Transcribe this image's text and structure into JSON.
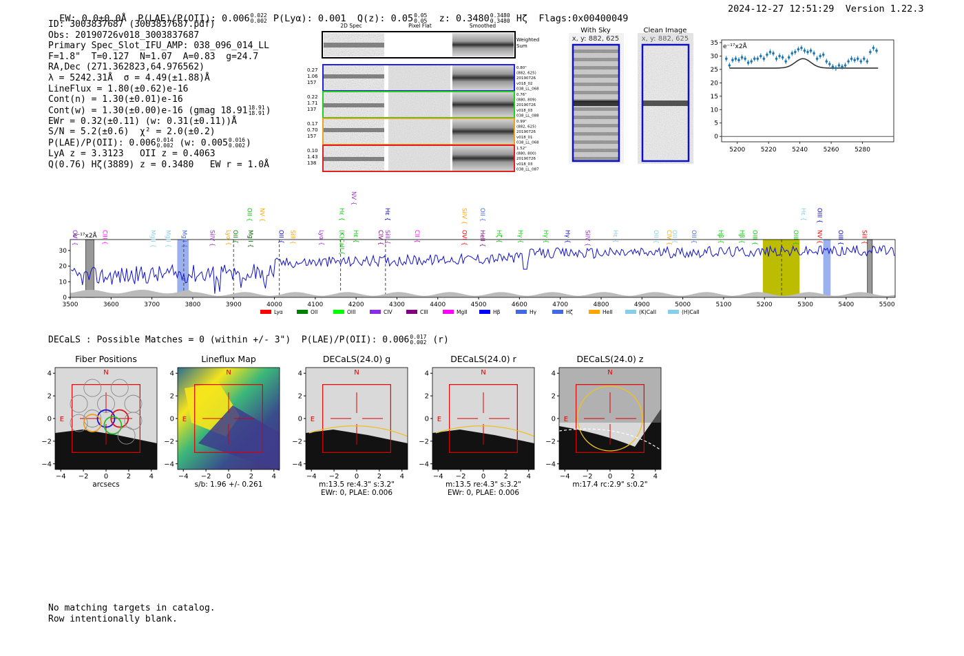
{
  "header": {
    "ew_label": "EW: 0.0±0.0Å",
    "plae_label": "P(LAE)/P(OII): 0.006",
    "plae_hi": "0.022",
    "plae_lo": "0.002",
    "plya": "P(Lyα): 0.001",
    "qz_label": "Q(z): 0.05",
    "qz_hi": "0.05",
    "qz_lo": "0.05",
    "z_label": "z: 0.3480",
    "z_hi": "0.3480",
    "z_lo": "0.3480",
    "line_name": "Hζ",
    "flags": "Flags:0x00400049",
    "timestamp": "2024-12-27 12:51:29",
    "version": "Version 1.22.3"
  },
  "info": {
    "id": "ID: 3003837687 (3003837687.pdf)",
    "obs": "Obs: 20190726v018_3003837687",
    "primary": "Primary Spec_Slot_IFU_AMP: 038_096_014_LL",
    "params": "F=1.8\"  T=0.127  N=1.07  A=0.83  g=24.7",
    "radec": "RA,Dec (271.362823,64.976562)",
    "lambda": "λ = 5242.31Å  σ = 4.49(±1.88)Å",
    "lineflux": "LineFlux = 1.80(±0.62)e-16",
    "contn": "Cont(n) = 1.30(±0.01)e-16",
    "contw": "Cont(w) = 1.30(±0.00)e-16 (gmag 18.91",
    "contw_hi": "18.91",
    "contw_lo": "18.91",
    "ewr": "EWr = 0.32(±0.11) (w: 0.31(±0.11))Å",
    "sn": "S/N = 5.2(±0.6)  χ² = 2.0(±0.2)",
    "plae2": "P(LAE)/P(OII): 0.006",
    "plae2_hi": "0.014",
    "plae2_lo": "0.002",
    "plae2_w": "(w: 0.005",
    "plae2_w_hi": "0.016",
    "plae2_w_lo": "0.002",
    "lya": "LyA z = 3.3123   OII z = 0.4063",
    "q": "Q(0.76) Hζ(3889) z = 0.3480   EW r = 1.0Å"
  },
  "cutouts": {
    "col_2d": "2D Spec",
    "col_flat": "Pixel Flat",
    "col_smooth": "Smoothed",
    "weighted": "Weighted\nSum",
    "rows": [
      {
        "left": [
          "0.27",
          "1.06",
          "157"
        ],
        "right": [
          "0.80\"",
          "(882, 625)",
          "20190726",
          "v018_02",
          "038_LL_068"
        ],
        "color": "#2020e0"
      },
      {
        "left": [
          "0.22",
          "1.71",
          "137"
        ],
        "right": [
          "0.76\"",
          "(880, 809)",
          "20190726",
          "v018_03",
          "038_LL_088"
        ],
        "color": "#20d020"
      },
      {
        "left": [
          "0.17",
          "0.70",
          "157"
        ],
        "right": [
          "0.99\"",
          "(882, 625)",
          "20190726",
          "v018_01",
          "038_LL_068"
        ],
        "color": "#f0a020"
      },
      {
        "left": [
          "0.10",
          "1.43",
          "138"
        ],
        "right": [
          "1.52\"",
          "(880, 800)",
          "20190726",
          "v018_03",
          "038_LL_087"
        ],
        "color": "#e02020"
      }
    ],
    "with_sky_title": "With Sky",
    "with_sky_xy": "x, y: 882, 625",
    "clean_title": "Clean Image",
    "clean_xy": "x, y: 882, 625"
  },
  "zoom_chart": {
    "type": "scatter",
    "unit_label": "e⁻¹⁷x2Å",
    "xlim": [
      5190,
      5300
    ],
    "ylim": [
      -2,
      36
    ],
    "xticks": [
      "5200",
      "5220",
      "5240",
      "5260",
      "5280"
    ],
    "yticks": [
      "0",
      "5",
      "10",
      "15",
      "20",
      "25",
      "30",
      "35"
    ],
    "points": [
      [
        5193,
        29
      ],
      [
        5195,
        26.5
      ],
      [
        5197,
        28.5
      ],
      [
        5199,
        29
      ],
      [
        5201,
        28.5
      ],
      [
        5203,
        29.5
      ],
      [
        5205,
        29
      ],
      [
        5207,
        27.5
      ],
      [
        5209,
        28
      ],
      [
        5211,
        29
      ],
      [
        5213,
        29
      ],
      [
        5215,
        30
      ],
      [
        5217,
        29
      ],
      [
        5219,
        30.5
      ],
      [
        5221,
        31.5
      ],
      [
        5223,
        31
      ],
      [
        5225,
        29
      ],
      [
        5227,
        30
      ],
      [
        5229,
        29.5
      ],
      [
        5231,
        28
      ],
      [
        5233,
        29.5
      ],
      [
        5235,
        31
      ],
      [
        5237,
        31.5
      ],
      [
        5239,
        32.5
      ],
      [
        5241,
        33
      ],
      [
        5243,
        32
      ],
      [
        5245,
        31.5
      ],
      [
        5247,
        32
      ],
      [
        5249,
        31
      ],
      [
        5251,
        29
      ],
      [
        5253,
        30
      ],
      [
        5255,
        30.5
      ],
      [
        5257,
        28
      ],
      [
        5259,
        27
      ],
      [
        5261,
        26
      ],
      [
        5263,
        25.5
      ],
      [
        5265,
        26.5
      ],
      [
        5267,
        26
      ],
      [
        5269,
        26.5
      ],
      [
        5271,
        28
      ],
      [
        5273,
        29
      ],
      [
        5275,
        28.5
      ],
      [
        5277,
        29
      ],
      [
        5279,
        28
      ],
      [
        5281,
        29
      ],
      [
        5283,
        28
      ],
      [
        5285,
        31.5
      ],
      [
        5287,
        33
      ],
      [
        5289,
        32
      ]
    ],
    "fit_base": 25.5,
    "fit_peak": 29.0,
    "fit_center": 5242,
    "fit_sigma": 5
  },
  "spectrum": {
    "unit_label": "e⁻¹⁷x2Å",
    "xlim": [
      3500,
      5520
    ],
    "ylim": [
      0,
      37
    ],
    "xticks": [
      "3500",
      "3600",
      "3700",
      "3800",
      "3900",
      "4000",
      "4100",
      "4200",
      "4300",
      "4400",
      "4500",
      "4600",
      "4700",
      "4800",
      "4900",
      "5000",
      "5100",
      "5200",
      "5300",
      "5400",
      "5500"
    ],
    "yticks": [
      "0",
      "10",
      "20",
      "30"
    ],
    "dashed_lines": [
      3778,
      3900,
      4012,
      4162,
      4272,
      5242
    ],
    "blue_bands": [
      [
        3762,
        3790
      ],
      [
        5344,
        5362
      ]
    ],
    "gray_bands": [
      [
        3538,
        3558
      ],
      [
        5452,
        5464
      ]
    ],
    "yellow_band": [
      5196,
      5286
    ],
    "line_labels": [
      {
        "t": "OVI",
        "x": 3507,
        "r": 1,
        "c": "#8a2be2"
      },
      {
        "t": "CIII",
        "x": 3580,
        "r": 1,
        "c": "#ff00ff"
      },
      {
        "t": "MgII",
        "x": 3698,
        "r": 1,
        "c": "#87ceeb"
      },
      {
        "t": "MgII",
        "x": 3735,
        "r": 1,
        "c": "#87ceeb"
      },
      {
        "t": "MgII",
        "x": 3775,
        "r": 1,
        "c": "#4169e1"
      },
      {
        "t": "SiIV",
        "x": 3843,
        "r": 1,
        "c": "#9932cc"
      },
      {
        "t": "Lyα",
        "x": 3883,
        "r": 1,
        "c": "#ffa500"
      },
      {
        "t": "OII",
        "x": 3900,
        "r": 1,
        "c": "#008000"
      },
      {
        "t": "OII",
        "x": 3934,
        "r": 2,
        "c": "#00c000"
      },
      {
        "t": "MgII",
        "x": 3937,
        "r": 1,
        "c": "#006400"
      },
      {
        "t": "NV",
        "x": 3965,
        "r": 2,
        "c": "#ffa500"
      },
      {
        "t": "OII",
        "x": 4012,
        "r": 1,
        "c": "#0000cd"
      },
      {
        "t": "SiII",
        "x": 4040,
        "r": 1,
        "c": "#ffa500"
      },
      {
        "t": "Lyα",
        "x": 4110,
        "r": 1,
        "c": "#9932cc"
      },
      {
        "t": "Hε",
        "x": 4160,
        "r": 2,
        "c": "#00d000"
      },
      {
        "t": "(K)CaII",
        "x": 4160,
        "r": 1,
        "c": "#00c000"
      },
      {
        "t": "NV",
        "x": 4190,
        "r": 3,
        "c": "#9932cc"
      },
      {
        "t": "Hε",
        "x": 4195,
        "r": 1,
        "c": "#00d000"
      },
      {
        "t": "CIV",
        "x": 4255,
        "r": 1,
        "c": "#800080"
      },
      {
        "t": "Hε",
        "x": 4272,
        "r": 2,
        "c": "#0000cd"
      },
      {
        "t": "SiII",
        "x": 4272,
        "r": 1,
        "c": "#9932cc"
      },
      {
        "t": "CII",
        "x": 4345,
        "r": 1,
        "c": "#ff00ff"
      },
      {
        "t": "SiIV",
        "x": 4460,
        "r": 2,
        "c": "#ffa500"
      },
      {
        "t": "OVI",
        "x": 4460,
        "r": 1,
        "c": "#ff0000"
      },
      {
        "t": "OII",
        "x": 4505,
        "r": 2,
        "c": "#4169e1"
      },
      {
        "t": "HeII",
        "x": 4505,
        "r": 1,
        "c": "#800080"
      },
      {
        "t": "Hζ",
        "x": 4545,
        "r": 1,
        "c": "#00d000"
      },
      {
        "t": "Hγ",
        "x": 4598,
        "r": 1,
        "c": "#00d000"
      },
      {
        "t": "Hγ",
        "x": 4660,
        "r": 1,
        "c": "#00d000"
      },
      {
        "t": "Hγ",
        "x": 4713,
        "r": 1,
        "c": "#0000cd"
      },
      {
        "t": "SiIV",
        "x": 4762,
        "r": 1,
        "c": "#9932cc"
      },
      {
        "t": "Hε",
        "x": 4830,
        "r": 1,
        "c": "#87ceeb"
      },
      {
        "t": "OII",
        "x": 4930,
        "r": 1,
        "c": "#87ceeb"
      },
      {
        "t": "CIV",
        "x": 4962,
        "r": 1,
        "c": "#ffa500"
      },
      {
        "t": "OII",
        "x": 4975,
        "r": 1,
        "c": "#87ceeb"
      },
      {
        "t": "OII",
        "x": 5023,
        "r": 1,
        "c": "#4169e1"
      },
      {
        "t": "Hβ",
        "x": 5088,
        "r": 1,
        "c": "#00d000"
      },
      {
        "t": "Hβ",
        "x": 5140,
        "r": 1,
        "c": "#00d000"
      },
      {
        "t": "OIII",
        "x": 5172,
        "r": 1,
        "c": "#00d000"
      },
      {
        "t": "OIII",
        "x": 5272,
        "r": 1,
        "c": "#00d000"
      },
      {
        "t": "Hε",
        "x": 5291,
        "r": 2,
        "c": "#87ceeb"
      },
      {
        "t": "NV",
        "x": 5330,
        "r": 1,
        "c": "#ff0000"
      },
      {
        "t": "OIII",
        "x": 5330,
        "r": 2,
        "c": "#0000cd"
      },
      {
        "t": "OIII",
        "x": 5382,
        "r": 1,
        "c": "#0000cd"
      },
      {
        "t": "SiII",
        "x": 5440,
        "r": 1,
        "c": "#ff0000"
      }
    ],
    "legend": [
      {
        "t": "Lyα",
        "c": "#ff0000"
      },
      {
        "t": "OII",
        "c": "#008000"
      },
      {
        "t": "OIII",
        "c": "#00ff00"
      },
      {
        "t": "CIV",
        "c": "#8a2be2"
      },
      {
        "t": "CIII",
        "c": "#800080"
      },
      {
        "t": "MgII",
        "c": "#ff00ff"
      },
      {
        "t": "Hβ",
        "c": "#0000ff"
      },
      {
        "t": "Hγ",
        "c": "#4169e1"
      },
      {
        "t": "Hζ",
        "c": "#4169e1"
      },
      {
        "t": "HeII",
        "c": "#ffa500"
      },
      {
        "t": "(K)CaII",
        "c": "#87ceeb"
      },
      {
        "t": "(H)CaII",
        "c": "#87ceeb"
      }
    ]
  },
  "decals": {
    "summary": "DECaLS : Possible Matches = 0 (within +/- 3\")  P(LAE)/P(OII): 0.006",
    "summary_hi": "0.017",
    "summary_lo": "0.002",
    "summary_tail": "(r)",
    "panels": [
      {
        "title": "Fiber Positions",
        "under1": "arcsecs",
        "under2": ""
      },
      {
        "title": "Lineflux Map",
        "under1": "s/b: 1.96 +/- 0.261",
        "under2": ""
      },
      {
        "title": "DECaLS(24.0) g",
        "under1": "m:13.5  re:4.3\"  s:3.2\"",
        "under2": "EWr: 0, PLAE: 0.006"
      },
      {
        "title": "DECaLS(24.0) r",
        "under1": "m:13.5  re:4.3\"  s:3.2\"",
        "under2": "EWr: 0, PLAE: 0.006"
      },
      {
        "title": "DECaLS(24.0) z",
        "under1": "m:17.4 rc:2.9\"  s:0.2\"",
        "under2": ""
      }
    ],
    "axis_ticks": [
      "−4",
      "−2",
      "0",
      "2",
      "4"
    ],
    "north": "N",
    "east": "E"
  },
  "footer": {
    "line1": "No matching targets in catalog.",
    "line2": "Row intentionally blank."
  }
}
